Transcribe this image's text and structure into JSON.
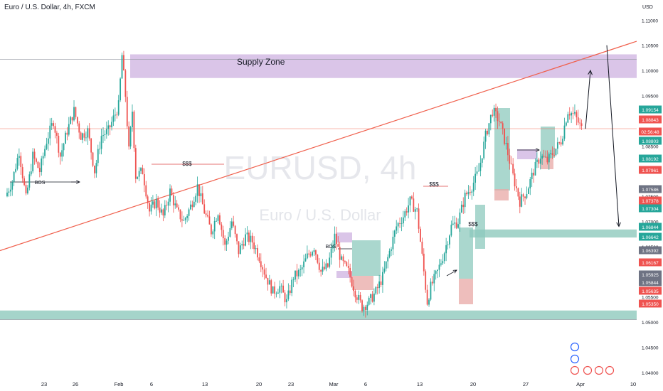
{
  "header": {
    "symbol_title": "Euro / U.S. Dollar, 4h, FXCM",
    "currency": "USD"
  },
  "watermark": {
    "main": "EURUSD, 4h",
    "sub": "Euro / U.S. Dollar"
  },
  "annotations": {
    "supply_zone": "Supply Zone",
    "bos": "BOS",
    "liquidity": "$$$"
  },
  "colors": {
    "bull": "#26a69a",
    "bear": "#ef5350",
    "supply_zone": "#cdb1e0",
    "demand_zone": "#8ec9bd",
    "trendline": "#f0604d",
    "arrow": "#131722"
  },
  "chart_data": {
    "type": "candlestick",
    "title": "Euro / U.S. Dollar, 4h, FXCM",
    "symbol": "EURUSD",
    "timeframe": "4h",
    "ylabel": "USD",
    "ylim": [
      1.038,
      1.114
    ],
    "y_ticks": [
      "1.11000",
      "1.10500",
      "1.10000",
      "1.09500",
      "1.09000",
      "1.08500",
      "1.08000",
      "1.07500",
      "1.07000",
      "1.06500",
      "1.06000",
      "1.05500",
      "1.05000",
      "1.04500",
      "1.04000"
    ],
    "x_ticks": [
      "23",
      "26",
      "Feb",
      "6",
      "13",
      "20",
      "23",
      "Mar",
      "6",
      "13",
      "20",
      "27",
      "Apr",
      "10"
    ],
    "price_labels": [
      {
        "value": "1.09154",
        "color": "#26a69a"
      },
      {
        "value": "1.08843",
        "color": "#ef5350"
      },
      {
        "value": "02:56:48",
        "color": "#ef5350"
      },
      {
        "value": "1.08803",
        "color": "#26a69a"
      },
      {
        "value": "1.08192",
        "color": "#26a69a"
      },
      {
        "value": "1.07961",
        "color": "#ef5350"
      },
      {
        "value": "1.07586",
        "color": "#6e7383"
      },
      {
        "value": "1.07378",
        "color": "#ef5350"
      },
      {
        "value": "1.07304",
        "color": "#26a69a"
      },
      {
        "value": "1.06844",
        "color": "#26a69a"
      },
      {
        "value": "1.06642",
        "color": "#26a69a"
      },
      {
        "value": "1.06392",
        "color": "#6e7383"
      },
      {
        "value": "1.06167",
        "color": "#ef5350"
      },
      {
        "value": "1.05925",
        "color": "#6e7383"
      },
      {
        "value": "1.05844",
        "color": "#6e7383"
      },
      {
        "value": "1.05635",
        "color": "#ef5350"
      },
      {
        "value": "1.05350",
        "color": "#ef5350"
      }
    ],
    "current_price": 1.08843,
    "supply_zone": [
      1.0985,
      1.1032
    ],
    "demand_zones": [
      [
        1.0505,
        1.0523
      ],
      [
        1.0668,
        1.0684
      ]
    ],
    "trendline": {
      "from": [
        "Jan 18",
        1.0642
      ],
      "to": [
        "Apr 10",
        1.1058
      ]
    },
    "path": [
      [
        0,
        1.075
      ],
      [
        2,
        1.078
      ],
      [
        4,
        1.084
      ],
      [
        6,
        1.0745
      ],
      [
        8,
        1.083
      ],
      [
        10,
        1.08
      ],
      [
        12,
        1.086
      ],
      [
        14,
        1.09
      ],
      [
        16,
        1.083
      ],
      [
        18,
        1.088
      ],
      [
        20,
        1.092
      ],
      [
        22,
        1.087
      ],
      [
        24,
        1.088
      ],
      [
        26,
        1.08
      ],
      [
        28,
        1.087
      ],
      [
        30,
        1.088
      ],
      [
        33,
        1.093
      ],
      [
        34,
        1.103
      ],
      [
        35,
        1.095
      ],
      [
        36,
        1.084
      ],
      [
        37,
        1.092
      ],
      [
        38,
        1.079
      ],
      [
        40,
        1.08
      ],
      [
        42,
        1.072
      ],
      [
        44,
        1.074
      ],
      [
        46,
        1.071
      ],
      [
        48,
        1.076
      ],
      [
        50,
        1.072
      ],
      [
        52,
        1.07
      ],
      [
        54,
        1.073
      ],
      [
        56,
        1.077
      ],
      [
        58,
        1.072
      ],
      [
        60,
        1.068
      ],
      [
        62,
        1.072
      ],
      [
        64,
        1.065
      ],
      [
        66,
        1.07
      ],
      [
        68,
        1.064
      ],
      [
        70,
        1.067
      ],
      [
        72,
        1.066
      ],
      [
        74,
        1.063
      ],
      [
        76,
        1.059
      ],
      [
        78,
        1.056
      ],
      [
        80,
        1.057
      ],
      [
        82,
        1.054
      ],
      [
        84,
        1.059
      ],
      [
        86,
        1.06
      ],
      [
        88,
        1.063
      ],
      [
        90,
        1.065
      ],
      [
        92,
        1.06
      ],
      [
        94,
        1.061
      ],
      [
        96,
        1.067
      ],
      [
        98,
        1.062
      ],
      [
        100,
        1.06
      ],
      [
        102,
        1.056
      ],
      [
        104,
        1.053
      ],
      [
        106,
        1.054
      ],
      [
        108,
        1.056
      ],
      [
        110,
        1.059
      ],
      [
        112,
        1.064
      ],
      [
        114,
        1.069
      ],
      [
        116,
        1.071
      ],
      [
        118,
        1.074
      ],
      [
        120,
        1.072
      ],
      [
        122,
        1.06
      ],
      [
        123,
        1.054
      ],
      [
        124,
        1.057
      ],
      [
        126,
        1.06
      ],
      [
        128,
        1.064
      ],
      [
        130,
        1.069
      ],
      [
        132,
        1.07
      ],
      [
        134,
        1.075
      ],
      [
        136,
        1.077
      ],
      [
        138,
        1.08
      ],
      [
        140,
        1.087
      ],
      [
        142,
        1.092
      ],
      [
        144,
        1.09
      ],
      [
        146,
        1.085
      ],
      [
        148,
        1.079
      ],
      [
        150,
        1.074
      ],
      [
        152,
        1.076
      ],
      [
        154,
        1.08
      ],
      [
        156,
        1.083
      ],
      [
        158,
        1.082
      ],
      [
        160,
        1.084
      ],
      [
        162,
        1.086
      ],
      [
        164,
        1.092
      ],
      [
        166,
        1.091
      ],
      [
        168,
        1.0884
      ]
    ],
    "projection": [
      {
        "from": [
          "Mar 31",
          1.0884
        ],
        "to": [
          "Apr 1",
          1.1
        ]
      },
      {
        "from": [
          "Apr 2",
          1.105
        ],
        "to": [
          "Apr 6",
          1.069
        ]
      }
    ]
  }
}
